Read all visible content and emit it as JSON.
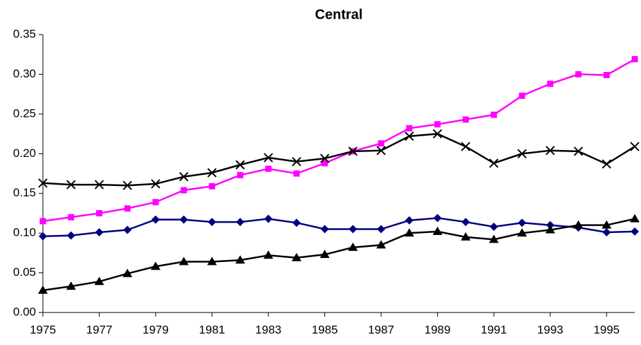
{
  "chart_data": {
    "type": "line",
    "title": "Central",
    "x": [
      1975,
      1976,
      1977,
      1978,
      1979,
      1980,
      1981,
      1982,
      1983,
      1984,
      1985,
      1986,
      1987,
      1988,
      1989,
      1990,
      1991,
      1992,
      1993,
      1994,
      1995,
      1996
    ],
    "series": [
      {
        "color": "#000080",
        "marker": "diamond",
        "values": [
          0.096,
          0.097,
          0.101,
          0.104,
          0.117,
          0.117,
          0.114,
          0.114,
          0.118,
          0.113,
          0.105,
          0.105,
          0.105,
          0.116,
          0.119,
          0.114,
          0.108,
          0.113,
          0.11,
          0.107,
          0.101,
          0.102
        ]
      },
      {
        "color": "#ff00ff",
        "marker": "square",
        "values": [
          0.115,
          0.12,
          0.125,
          0.131,
          0.139,
          0.154,
          0.159,
          0.173,
          0.181,
          0.175,
          0.188,
          0.203,
          0.213,
          0.232,
          0.237,
          0.243,
          0.249,
          0.273,
          0.288,
          0.3,
          0.299,
          0.319
        ]
      },
      {
        "color": "#000000",
        "marker": "x",
        "values": [
          0.163,
          0.161,
          0.161,
          0.16,
          0.162,
          0.171,
          0.176,
          0.186,
          0.195,
          0.19,
          0.194,
          0.203,
          0.204,
          0.222,
          0.225,
          0.209,
          0.188,
          0.2,
          0.204,
          0.203,
          0.187,
          0.209
        ]
      },
      {
        "color": "#000000",
        "marker": "triangle",
        "values": [
          0.028,
          0.033,
          0.039,
          0.049,
          0.058,
          0.064,
          0.064,
          0.066,
          0.072,
          0.069,
          0.073,
          0.082,
          0.085,
          0.1,
          0.102,
          0.095,
          0.092,
          0.1,
          0.104,
          0.11,
          0.11,
          0.118
        ]
      }
    ],
    "xlim": [
      1975,
      1996
    ],
    "xticks": [
      1975,
      1977,
      1979,
      1981,
      1983,
      1985,
      1987,
      1989,
      1991,
      1993,
      1995
    ],
    "ylim": [
      0,
      0.35
    ],
    "yticks": [
      {
        "value": 0,
        "label": "0.00"
      },
      {
        "value": 0.05,
        "label": "0.05"
      },
      {
        "value": 0.1,
        "label": "0.10"
      },
      {
        "value": 0.15,
        "label": "0.15"
      },
      {
        "value": 0.2,
        "label": "0.20"
      },
      {
        "value": 0.25,
        "label": "0.25"
      },
      {
        "value": 0.3,
        "label": "0.30"
      },
      {
        "value": 0.35,
        "label": "0.35"
      }
    ],
    "grid": false
  }
}
